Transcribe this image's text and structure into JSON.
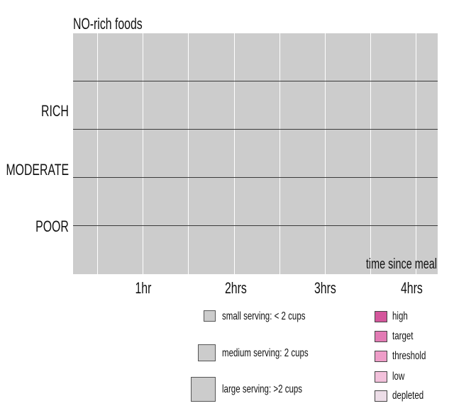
{
  "chart_data": {
    "type": "scatter",
    "title": "NO-rich foods",
    "xlabel": "time since meal",
    "ylabel": "",
    "x_ticks": [
      "1hr",
      "2hrs",
      "3hrs",
      "4hrs"
    ],
    "y_categories": [
      "RICH",
      "MODERATE",
      "POOR"
    ],
    "series": [],
    "grid": true,
    "legend_position": "bottom",
    "serving_legend": [
      {
        "label": "small serving: < 2 cups"
      },
      {
        "label": "medium serving: 2 cups"
      },
      {
        "label": "large serving: >2 cups"
      }
    ],
    "level_legend": [
      {
        "label": "high",
        "color": "#d4579c"
      },
      {
        "label": "target",
        "color": "#e27bb4"
      },
      {
        "label": "threshold",
        "color": "#ee9dc8"
      },
      {
        "label": "low",
        "color": "#f2c1db"
      },
      {
        "label": "depleted",
        "color": "#ecdde7"
      }
    ],
    "plot_background": "#cccccc"
  }
}
